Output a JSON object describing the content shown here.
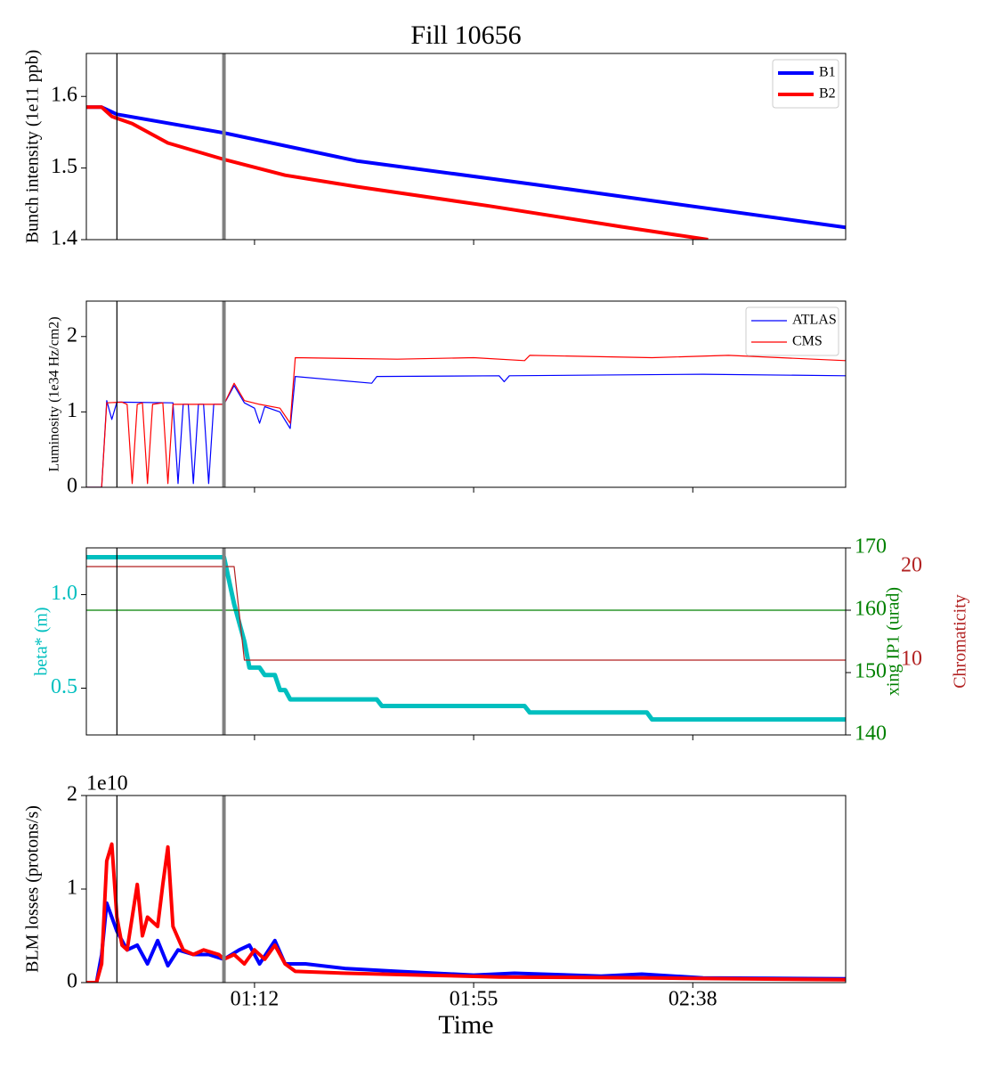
{
  "chart_data": [
    {
      "type": "line",
      "title": "Fill 10656",
      "ylabel": "Bunch intensity (1e11 ppb)",
      "xlim": [
        "00:39",
        "03:08"
      ],
      "xticks": [
        "01:12",
        "01:55",
        "02:38"
      ],
      "xticklabels": false,
      "ylim": [
        1.4,
        1.66
      ],
      "yticks": [
        1.4,
        1.5,
        1.6
      ],
      "legend": "upper right",
      "vlines": [
        {
          "x": "00:45",
          "color": "#000000"
        },
        {
          "x": "01:06",
          "color": "#808080"
        }
      ],
      "series": [
        {
          "name": "B1",
          "color": "#0000ff",
          "x": [
            "00:39",
            "00:42",
            "00:45",
            "01:06",
            "01:32",
            "02:07",
            "03:08"
          ],
          "values": [
            1.585,
            1.585,
            1.575,
            1.549,
            1.51,
            1.477,
            1.417
          ]
        },
        {
          "name": "B2",
          "color": "#ff0000",
          "x": [
            "00:39",
            "00:42",
            "00:44",
            "00:48",
            "00:55",
            "01:06",
            "01:18",
            "01:32",
            "01:58",
            "02:24",
            "02:41"
          ],
          "values": [
            1.585,
            1.585,
            1.572,
            1.562,
            1.535,
            1.512,
            1.49,
            1.474,
            1.447,
            1.418,
            1.4
          ]
        }
      ]
    },
    {
      "type": "line",
      "ylabel": "Luminosity (1e34 Hz/cm2)",
      "xlim": [
        "00:39",
        "03:08"
      ],
      "xticks": [
        "01:12",
        "01:55",
        "02:38"
      ],
      "xticklabels": false,
      "ylim": [
        0,
        2.47
      ],
      "yticks": [
        0,
        1,
        2
      ],
      "legend": "upper right",
      "vlines": [
        {
          "x": "00:45",
          "color": "#000000"
        },
        {
          "x": "01:06",
          "color": "#808080"
        }
      ],
      "series": [
        {
          "name": "ATLAS",
          "color": "#0000ff",
          "x": [
            "00:39",
            "00:42",
            "00:43",
            "00:44",
            "00:45",
            "00:56",
            "00:57",
            "00:58",
            "00:59",
            "01:00",
            "01:01",
            "01:02",
            "01:03",
            "01:04",
            "01:06",
            "01:08",
            "01:10",
            "01:12",
            "01:13",
            "01:14",
            "01:17",
            "01:19",
            "01:20",
            "01:35",
            "01:36",
            "02:00",
            "02:01",
            "02:02",
            "02:40",
            "03:08"
          ],
          "values": [
            0,
            0,
            1.15,
            0.9,
            1.13,
            1.12,
            0.05,
            1.1,
            1.1,
            0.05,
            1.1,
            1.1,
            0.05,
            1.1,
            1.1,
            1.35,
            1.12,
            1.05,
            0.85,
            1.07,
            1.0,
            0.78,
            1.47,
            1.38,
            1.47,
            1.48,
            1.4,
            1.48,
            1.5,
            1.48
          ]
        },
        {
          "name": "CMS",
          "color": "#ff0000",
          "x": [
            "00:39",
            "00:42",
            "00:43",
            "00:46",
            "00:47",
            "00:48",
            "00:49",
            "00:50",
            "00:51",
            "00:52",
            "00:54",
            "00:55",
            "00:56",
            "01:06",
            "01:08",
            "01:10",
            "01:13",
            "01:17",
            "01:19",
            "01:20",
            "01:40",
            "01:55",
            "02:05",
            "02:06",
            "02:30",
            "02:45",
            "03:08"
          ],
          "values": [
            0,
            0,
            1.12,
            1.13,
            1.1,
            0.05,
            1.1,
            1.12,
            0.05,
            1.1,
            1.12,
            0.05,
            1.1,
            1.1,
            1.38,
            1.15,
            1.1,
            1.05,
            0.85,
            1.72,
            1.7,
            1.72,
            1.68,
            1.75,
            1.72,
            1.75,
            1.68
          ]
        }
      ]
    },
    {
      "type": "line",
      "ylabel": "beta* (m)",
      "y2label": "xing IP1 (urad)",
      "y3label": "Chromaticity",
      "xlim": [
        "00:39",
        "03:08"
      ],
      "xticks": [
        "01:12",
        "01:55",
        "02:38"
      ],
      "xticklabels": false,
      "ylim": [
        0.25,
        1.25
      ],
      "yticks": [
        0.5,
        {
          "value": 1,
          "label": "1.0"
        }
      ],
      "y2lim": [
        140,
        170
      ],
      "y2ticks": [
        140,
        150,
        160,
        170
      ],
      "y3lim": [
        2,
        22
      ],
      "y3ticks": [
        10,
        20
      ],
      "vlines": [
        {
          "x": "00:45",
          "color": "#000000"
        },
        {
          "x": "01:06",
          "color": "#808080"
        }
      ],
      "series": [
        {
          "color": "#00bfbf",
          "axis": "y",
          "x": [
            "00:39",
            "01:06",
            "01:08",
            "01:10",
            "01:11",
            "01:13",
            "01:14",
            "01:16",
            "01:17",
            "01:18",
            "01:19",
            "01:36",
            "01:37",
            "02:05",
            "02:06",
            "02:29",
            "02:30",
            "03:08"
          ],
          "values": [
            1.2,
            1.2,
            0.95,
            0.75,
            0.61,
            0.61,
            0.57,
            0.57,
            0.49,
            0.49,
            0.44,
            0.44,
            0.405,
            0.405,
            0.37,
            0.37,
            0.333,
            0.333
          ]
        },
        {
          "color": "#008000",
          "axis": "y2",
          "x": [
            "00:39",
            "03:08"
          ],
          "values": [
            160,
            160
          ]
        },
        {
          "color": "#b22222",
          "axis": "y3",
          "x": [
            "00:39",
            "01:06",
            "01:06",
            "01:06",
            "01:08",
            "01:10",
            "03:08"
          ],
          "values": [
            20,
            20,
            10,
            20,
            20,
            10,
            10
          ]
        }
      ]
    },
    {
      "type": "line",
      "ylabel": "BLM losses (protons/s)",
      "offset_label": "1e10",
      "xlabel": "Time",
      "xlim": [
        "00:39",
        "03:08"
      ],
      "xticks": [
        "01:12",
        "01:55",
        "02:38"
      ],
      "xticklabels": true,
      "ylim": [
        0,
        2
      ],
      "yticks": [
        0,
        1,
        2
      ],
      "vlines": [
        {
          "x": "00:45",
          "color": "#000000"
        },
        {
          "x": "01:06",
          "color": "#808080"
        }
      ],
      "series": [
        {
          "name": "B1",
          "color": "#0000ff",
          "x": [
            "00:39",
            "00:41",
            "00:42",
            "00:43",
            "00:45",
            "00:47",
            "00:49",
            "00:51",
            "00:53",
            "00:55",
            "00:57",
            "01:00",
            "01:03",
            "01:06",
            "01:09",
            "01:11",
            "01:13",
            "01:16",
            "01:18",
            "01:22",
            "01:30",
            "01:40",
            "01:55",
            "02:03",
            "02:20",
            "02:28",
            "02:40",
            "03:08"
          ],
          "values": [
            0,
            0,
            0.3,
            0.85,
            0.55,
            0.35,
            0.4,
            0.2,
            0.45,
            0.18,
            0.35,
            0.3,
            0.3,
            0.25,
            0.35,
            0.4,
            0.2,
            0.45,
            0.2,
            0.2,
            0.15,
            0.12,
            0.08,
            0.1,
            0.07,
            0.09,
            0.05,
            0.04
          ]
        },
        {
          "name": "B2",
          "color": "#ff0000",
          "x": [
            "00:39",
            "00:41",
            "00:42",
            "00:43",
            "00:44",
            "00:45",
            "00:46",
            "00:47",
            "00:49",
            "00:50",
            "00:51",
            "00:53",
            "00:54",
            "00:55",
            "00:56",
            "00:58",
            "01:00",
            "01:02",
            "01:05",
            "01:06",
            "01:08",
            "01:10",
            "01:12",
            "01:14",
            "01:16",
            "01:18",
            "01:20",
            "01:30",
            "01:45",
            "02:00",
            "02:30",
            "03:08"
          ],
          "values": [
            0,
            0,
            0.2,
            1.3,
            1.48,
            0.7,
            0.4,
            0.35,
            1.05,
            0.5,
            0.7,
            0.6,
            1.05,
            1.45,
            0.6,
            0.35,
            0.3,
            0.35,
            0.3,
            0.25,
            0.3,
            0.2,
            0.35,
            0.25,
            0.4,
            0.2,
            0.12,
            0.1,
            0.08,
            0.06,
            0.05,
            0.03
          ]
        }
      ]
    }
  ]
}
